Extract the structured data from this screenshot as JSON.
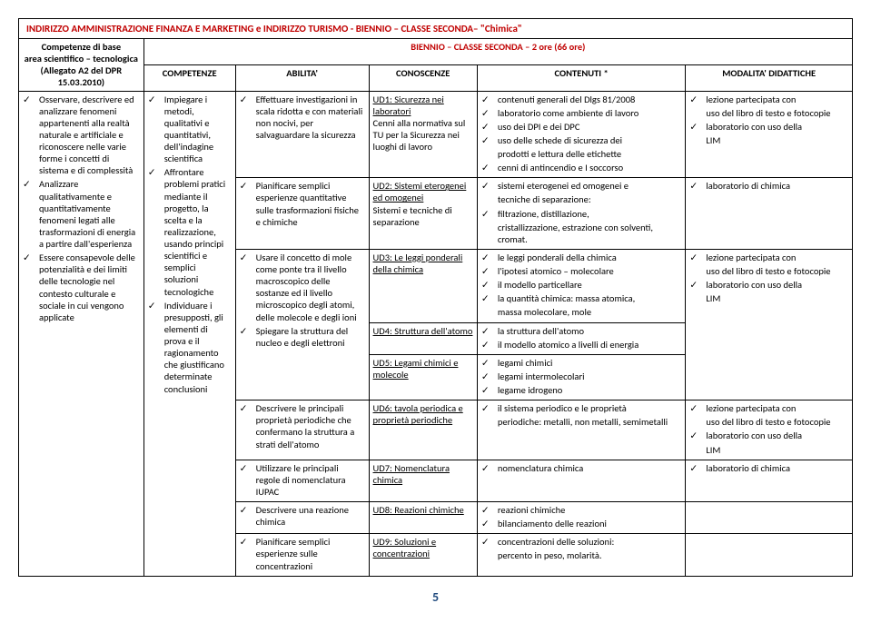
{
  "page_title": "INDIRIZZO AMMINISTRAZIONE FINANZA E MARKETING e INDIRIZZO TURISMO - BIENNIO – CLASSE SECONDA– \"Chimica\"",
  "col1_header": "Competenze di base\narea scientifico – tecnologica\n(Allegato A2 del DPR 15.03.2010)",
  "biennio_header": "BIENNIO – CLASSE SECONDA – 2 ore (66 ore)",
  "h_competenze": "COMPETENZE",
  "h_abilita": "ABILITA'",
  "h_conoscenze": "CONOSCENZE",
  "h_contenuti": "CONTENUTI *",
  "h_modalita": "MODALITA' DIDATTICHE",
  "competenze_base": [
    "Osservare, descrivere ed analizzare fenomeni appartenenti alla realtà naturale e artificiale e riconoscere nelle varie forme i concetti di sistema e di complessità",
    "Analizzare qualitativamente e quantitativamente fenomeni legati alle trasformazioni di energia a partire dall'esperienza",
    "Essere consapevole delle potenzialità e dei limiti delle tecnologie nel contesto culturale e sociale in cui vengono applicate"
  ],
  "competenze": [
    "Impiegare i metodi, qualitativi e quantitativi, dell'indagine scientifica",
    "Affrontare problemi pratici mediante il progetto, la scelta e la realizzazione, usando principi scientifici e semplici soluzioni tecnologiche",
    "Individuare i presupposti, gli elementi di prova e il ragionamento che giustificano determinate conclusioni"
  ],
  "r1_abilita": "Effettuare investigazioni in scala ridotta e con materiali non nocivi, per salvaguardare la sicurezza",
  "r1_conoscenze_u": "UD1: Sicurezza nei laboratori",
  "r1_conoscenze": "Cenni alla normativa sul TU per la Sicurezza nei luoghi di lavoro",
  "r1_cont": [
    "contenuti generali del Dlgs 81/2008",
    "laboratorio come ambiente di lavoro",
    "uso dei DPI e dei DPC",
    "uso delle schede di sicurezza dei"
  ],
  "r1_cont_tail": [
    "prodotti e lettura delle etichette"
  ],
  "r1_cont2": [
    "cenni di antincendio e I soccorso"
  ],
  "r1_mod": [
    "lezione partecipata con",
    "laboratorio con uso della"
  ],
  "r1_mod_pre": "uso del libro di testo e fotocopie",
  "r1_mod_tail": "LIM",
  "r2_abilita": "Pianificare semplici esperienze quantitative sulle trasformazioni fisiche e chimiche",
  "r2_conoscenze_u": "UD2: Sistemi eterogenei ed omogenei",
  "r2_conoscenze": "Sistemi e tecniche di separazione",
  "r2_cont": [
    "sistemi eterogenei ed omogenei e"
  ],
  "r2_cont_tail": "tecniche di separazione:",
  "r2_cont2": [
    "filtrazione, distillazione,"
  ],
  "r2_cont2_tail": "cristallizzazione, estrazione con solventi, cromat.",
  "r2_mod": [
    "laboratorio di chimica"
  ],
  "r3_abilita": "Usare il concetto di mole come ponte tra il livello macroscopico delle sostanze ed il livello microscopico degli atomi, delle molecole e degli ioni",
  "r3_conoscenze_u": "UD3: Le leggi ponderali della chimica",
  "r3_cont": [
    "le leggi ponderali della chimica",
    "l'ipotesi atomico – molecolare",
    "il modello particellare",
    "la quantità chimica: massa atomica,"
  ],
  "r3_cont_tail": "massa molecolare, mole",
  "r3_mod": [
    "lezione partecipata con",
    "laboratorio con uso della"
  ],
  "r3_mod_pre": "uso del libro di testo e fotocopie",
  "r3_mod_tail": "LIM",
  "r4_abilita": "Spiegare la struttura del nucleo e degli elettroni",
  "r4_conoscenze_u": "UD4: Struttura dell'atomo",
  "r4_cont": [
    "la struttura dell'atomo",
    "il modello atomico a livelli di energia"
  ],
  "r5_conoscenze_u": "UD5: Legami chimici e molecole",
  "r5_cont": [
    "legami chimici",
    "legami intermolecolari",
    "legame idrogeno"
  ],
  "r6_abilita": "Descrivere le principali proprietà periodiche che confermano la struttura a strati dell'atomo",
  "r6_conoscenze_u": "UD6: tavola periodica e proprietà periodiche",
  "r6_cont": [
    "il sistema periodico e le proprietà"
  ],
  "r6_cont_tail": "periodiche: metalli, non metalli, semimetalli",
  "r6_mod": [
    "lezione partecipata con",
    "laboratorio con uso della"
  ],
  "r6_mod_pre": "uso del libro di testo e fotocopie",
  "r6_mod_tail": "LIM",
  "r7_abilita": "Utilizzare le principali regole di nomenclatura IUPAC",
  "r7_conoscenze_u": "UD7: Nomenclatura chimica",
  "r7_cont": [
    "nomenclatura chimica"
  ],
  "r7_mod": [
    "laboratorio di chimica"
  ],
  "r8_abilita": "Descrivere una reazione chimica",
  "r8_conoscenze_u": "UD8: Reazioni chimiche",
  "r8_cont": [
    "reazioni chimiche",
    "bilanciamento delle reazioni"
  ],
  "r9_abilita": "Pianificare semplici esperienze sulle concentrazioni",
  "r9_conoscenze_u": "UD9: Soluzioni e concentrazioni",
  "r9_cont": [
    "concentrazioni delle soluzioni:"
  ],
  "r9_cont_tail": "percento in peso, molarità.",
  "page_number": "5"
}
